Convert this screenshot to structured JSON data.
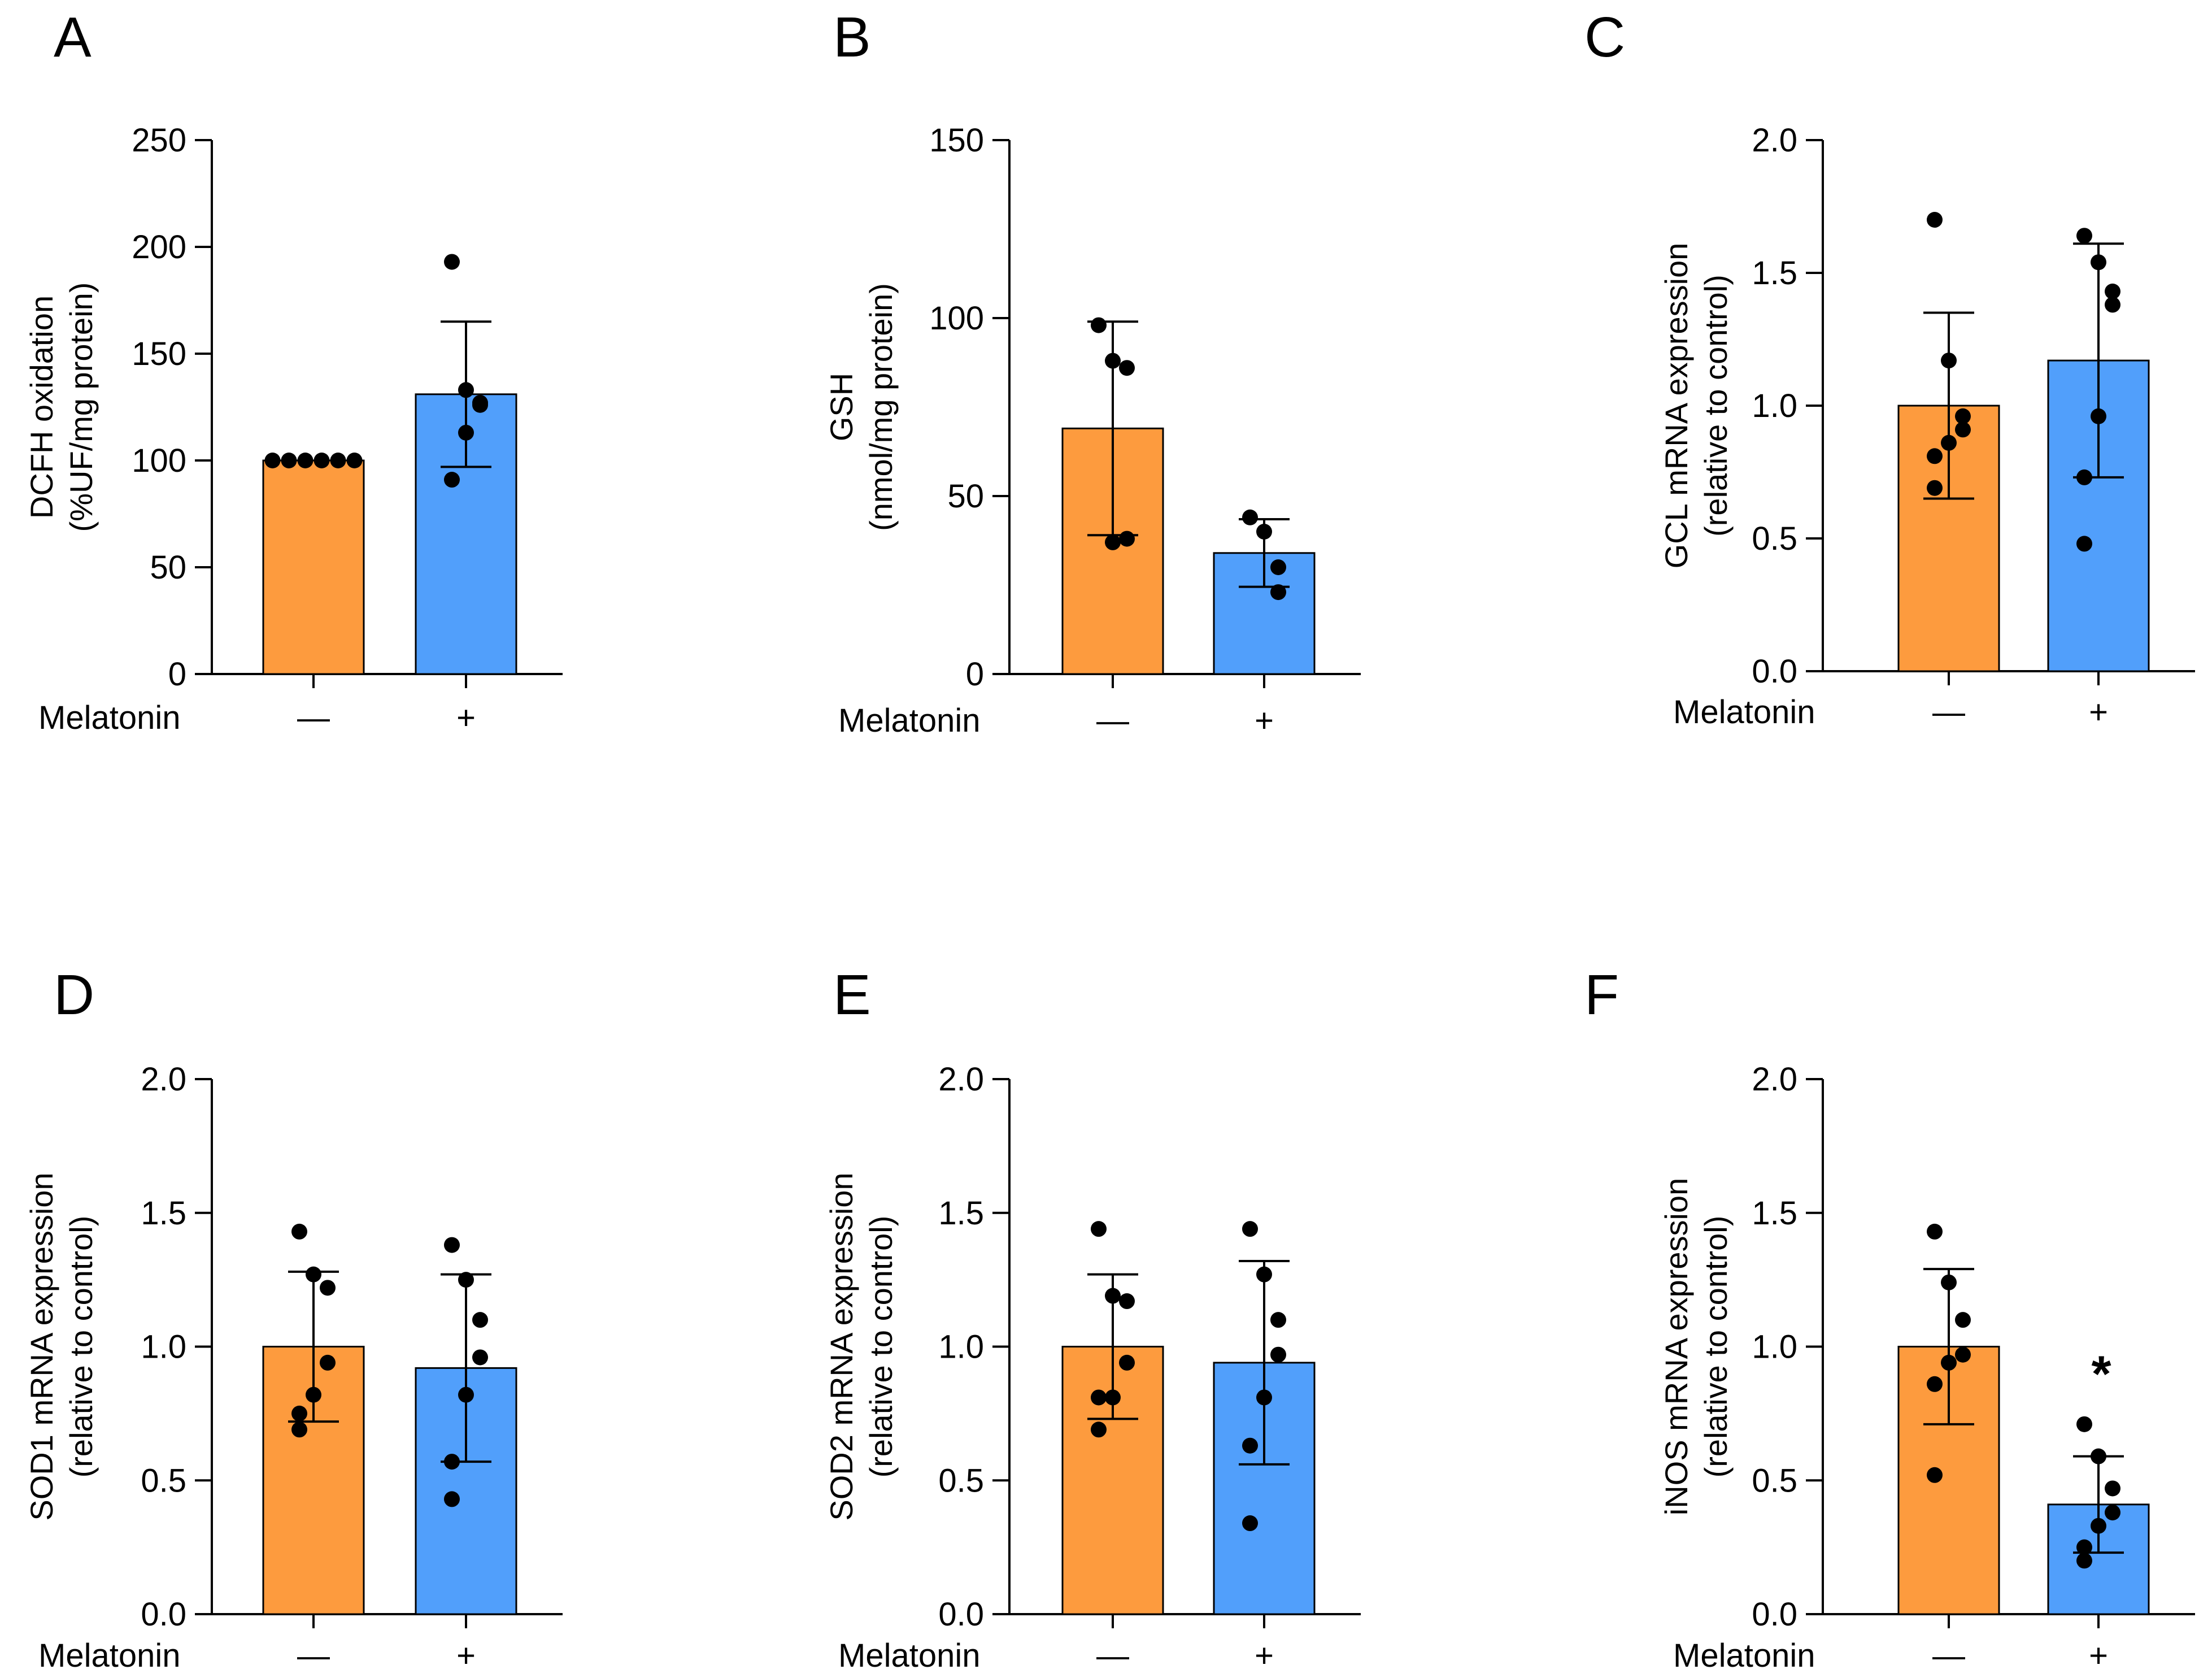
{
  "figure": {
    "treatment_label": "Melatonin",
    "group_labels": [
      "—",
      "+"
    ]
  },
  "colors": {
    "control_bar": "#fd9b3e",
    "melatonin_bar": "#519ffb",
    "ink": "#000000"
  },
  "chart_data": [
    {
      "type": "bar",
      "panel": "A",
      "ylabel": [
        "DCFH oxidation",
        "(%UF/mg protein)"
      ],
      "xlabel": "Melatonin",
      "categories": [
        "—",
        "+"
      ],
      "yticks": [
        "0",
        "50",
        "100",
        "150",
        "200",
        "250"
      ],
      "ylim": [
        0,
        250
      ],
      "values": [
        100,
        131
      ],
      "error": [
        0,
        34
      ],
      "points": [
        [
          100,
          100,
          100,
          100,
          100,
          100
        ],
        [
          193,
          133,
          127,
          126,
          113,
          91
        ]
      ],
      "significance": [
        "",
        ""
      ]
    },
    {
      "type": "bar",
      "panel": "B",
      "ylabel": [
        "GSH",
        "(nmol/mg protein)"
      ],
      "xlabel": "Melatonin",
      "categories": [
        "—",
        "+"
      ],
      "yticks": [
        "0",
        "50",
        "100",
        "150"
      ],
      "ylim": [
        0,
        150
      ],
      "values": [
        69,
        34
      ],
      "error": [
        30,
        9.5
      ],
      "points": [
        [
          98,
          88,
          86,
          38,
          37
        ],
        [
          44,
          40,
          30,
          23
        ]
      ],
      "significance": [
        "",
        ""
      ]
    },
    {
      "type": "bar",
      "panel": "C",
      "ylabel": [
        "GCL mRNA expression",
        "(relative to control)"
      ],
      "xlabel": "Melatonin",
      "categories": [
        "—",
        "+"
      ],
      "yticks": [
        "0.0",
        "0.5",
        "1.0",
        "1.5",
        "2.0"
      ],
      "ylim": [
        0,
        2
      ],
      "values": [
        1.0,
        1.17
      ],
      "error": [
        0.35,
        0.44
      ],
      "points": [
        [
          1.7,
          1.17,
          0.96,
          0.91,
          0.86,
          0.81,
          0.69
        ],
        [
          1.64,
          1.54,
          1.43,
          1.38,
          0.96,
          0.73,
          0.48
        ]
      ],
      "significance": [
        "",
        ""
      ]
    },
    {
      "type": "bar",
      "panel": "D",
      "ylabel": [
        "SOD1 mRNA expression",
        "(relative to control)"
      ],
      "xlabel": "Melatonin",
      "categories": [
        "—",
        "+"
      ],
      "yticks": [
        "0.0",
        "0.5",
        "1.0",
        "1.5",
        "2.0"
      ],
      "ylim": [
        0,
        2
      ],
      "values": [
        1.0,
        0.92
      ],
      "error": [
        0.28,
        0.35
      ],
      "points": [
        [
          1.43,
          1.27,
          1.22,
          0.94,
          0.82,
          0.75,
          0.69
        ],
        [
          1.38,
          1.25,
          1.1,
          0.96,
          0.82,
          0.57,
          0.43
        ]
      ],
      "significance": [
        "",
        ""
      ]
    },
    {
      "type": "bar",
      "panel": "E",
      "ylabel": [
        "SOD2 mRNA expression",
        "(relative to control)"
      ],
      "xlabel": "Melatonin",
      "categories": [
        "—",
        "+"
      ],
      "yticks": [
        "0.0",
        "0.5",
        "1.0",
        "1.5",
        "2.0"
      ],
      "ylim": [
        0,
        2
      ],
      "values": [
        1.0,
        0.94
      ],
      "error": [
        0.27,
        0.38
      ],
      "points": [
        [
          1.44,
          1.19,
          1.17,
          0.94,
          0.81,
          0.81,
          0.69
        ],
        [
          1.44,
          1.27,
          1.1,
          0.97,
          0.81,
          0.63,
          0.34
        ]
      ],
      "significance": [
        "",
        ""
      ]
    },
    {
      "type": "bar",
      "panel": "F",
      "ylabel": [
        "iNOS mRNA expression",
        "(relative to control)"
      ],
      "xlabel": "Melatonin",
      "categories": [
        "—",
        "+"
      ],
      "yticks": [
        "0.0",
        "0.5",
        "1.0",
        "1.5",
        "2.0"
      ],
      "ylim": [
        0,
        2
      ],
      "values": [
        1.0,
        0.41
      ],
      "error": [
        0.29,
        0.18
      ],
      "points": [
        [
          1.43,
          1.24,
          1.1,
          0.97,
          0.94,
          0.86,
          0.52
        ],
        [
          0.71,
          0.59,
          0.47,
          0.38,
          0.33,
          0.25,
          0.2
        ]
      ],
      "significance": [
        "",
        "*"
      ]
    }
  ]
}
